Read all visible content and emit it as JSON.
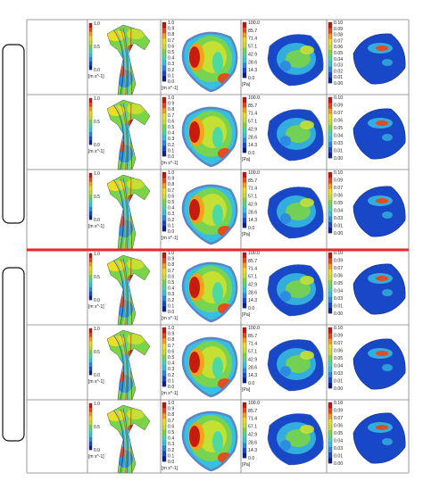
{
  "figure": {
    "rows": 6,
    "columns": [
      {
        "key": "c1",
        "colorbar": {
          "labels": [
            "1.0",
            "0.5",
            "0.0"
          ],
          "unit": "[m s^-1]"
        },
        "content": "velocity-streamlines"
      },
      {
        "key": "c2",
        "colorbar": {
          "labels": [
            "1.0",
            "0.9",
            "0.8",
            "0.7",
            "0.6",
            "0.5",
            "0.4",
            "0.3",
            "0.2",
            "0.1",
            "0.0"
          ],
          "unit": "[m s^-1]"
        },
        "content": "velocity-cross-section"
      },
      {
        "key": "c3",
        "colorbar": {
          "labels": [
            "100.0",
            "85.7",
            "71.4",
            "57.1",
            "42.9",
            "28.6",
            "14.3",
            "0.0"
          ],
          "unit": "[Pa]"
        },
        "content": "pressure-contour"
      },
      {
        "key": "c4",
        "colorbar_sets": [
          [
            "0.10",
            "0.09",
            "0.08",
            "0.07",
            "0.06",
            "0.05",
            "0.04",
            "0.03",
            "0.02",
            "0.01",
            "0.00"
          ],
          [
            "0.10",
            "0.09",
            "0.07",
            "0.06",
            "0.05",
            "0.04",
            "0.03",
            "0.01",
            "0.00"
          ]
        ],
        "colorbar_set_per_row": [
          0,
          1,
          1,
          1,
          1,
          1
        ],
        "content": "wall-shear-contour"
      }
    ],
    "colors": {
      "divider": "#e8262c",
      "frame": "#7f7f7f",
      "jet": [
        "#0b1e88",
        "#1848c8",
        "#2a88e0",
        "#38c0e0",
        "#48d8a8",
        "#7ad448",
        "#c8e030",
        "#f0e020",
        "#f4a018",
        "#e84818",
        "#c41410"
      ]
    }
  }
}
